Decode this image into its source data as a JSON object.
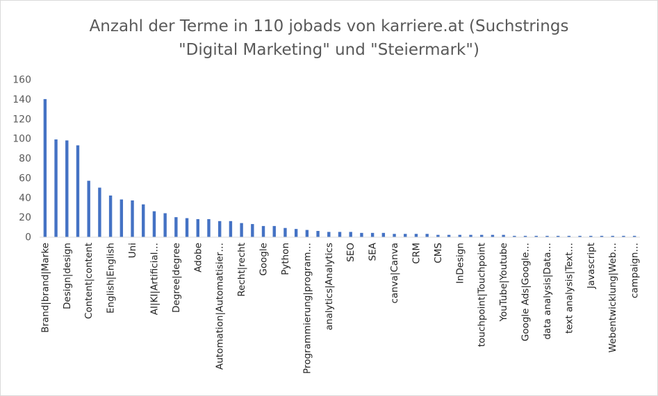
{
  "chart_data": {
    "type": "bar",
    "title_line1": "Anzahl der Terme in 110 jobads von karriere.at (Suchstrings",
    "title_line2": "\"Digital Marketing\" und \"Steiermark\")",
    "ylim": [
      0,
      160
    ],
    "yticks": [
      0,
      20,
      40,
      60,
      80,
      100,
      120,
      140,
      160
    ],
    "grid": false,
    "legend": "none",
    "bar_color": "#4472C4",
    "categories": [
      "Brand|brand|Marke",
      "",
      "Design|design",
      "",
      "Content|content",
      "",
      "English|English",
      "",
      "Uni",
      "",
      "AI|KI|Artificial…",
      "",
      "Degree|degree",
      "",
      "Adobe",
      "",
      "Automation|Automatisier…",
      "",
      "Recht|recht",
      "",
      "Google",
      "",
      "Python",
      "",
      "Programmierung|program…",
      "",
      "analytics|Analytics",
      "",
      "SEO",
      "",
      "SEA",
      "",
      "canva|Canva",
      "",
      "CRM",
      "",
      "CMS",
      "",
      "InDesign",
      "",
      "touchpoint|Touchpoint",
      "",
      "YouTube|Youtube",
      "",
      "Google Ads|Google…",
      "",
      "data analysis|Data…",
      "",
      "text analysis|Text…",
      "",
      "Javascript",
      "",
      "Webentwicklung|Web…",
      "",
      "campaign…"
    ],
    "values": [
      140,
      99,
      98,
      93,
      57,
      50,
      42,
      38,
      37,
      33,
      26,
      24,
      20,
      19,
      18,
      18,
      16,
      16,
      14,
      13,
      11,
      11,
      9,
      8,
      7,
      6,
      5,
      5,
      5,
      4,
      4,
      4,
      3,
      3,
      3,
      3,
      2,
      2,
      2,
      2,
      2,
      2,
      2,
      1,
      1,
      1,
      1,
      1,
      1,
      1,
      1,
      1,
      1,
      1,
      1
    ]
  }
}
